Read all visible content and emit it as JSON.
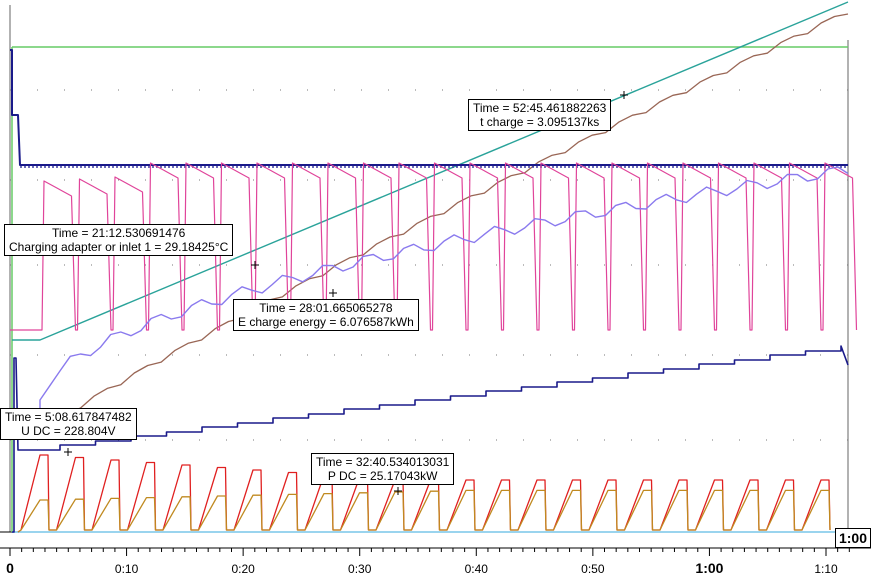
{
  "chart_data": {
    "type": "line",
    "x_unit": "mm:ss",
    "xlim": [
      0,
      72
    ],
    "x_ticks": [
      {
        "v": 0,
        "label": "0",
        "major": true
      },
      {
        "v": 10,
        "label": "0:10",
        "major": false
      },
      {
        "v": 20,
        "label": "0:20",
        "major": false
      },
      {
        "v": 30,
        "label": "0:30",
        "major": false
      },
      {
        "v": 40,
        "label": "0:40",
        "major": false
      },
      {
        "v": 50,
        "label": "0:50",
        "major": false
      },
      {
        "v": 60,
        "label": "1:00",
        "major": true
      },
      {
        "v": 70,
        "label": "1:10",
        "major": false
      }
    ],
    "end_marker_label": "1:00",
    "colors": {
      "green": "#66cc66",
      "teal": "#2aa39a",
      "brown": "#996655",
      "navy": "#1a1a8a",
      "magenta": "#e0449a",
      "lavender": "#8a7aee",
      "red": "#e02020",
      "orange": "#c08a20",
      "cyan": "#9ad4ee"
    },
    "annotations": [
      {
        "id": "t-charge",
        "time": "52:45.461882263",
        "line1": "Time = 52:45.461882263",
        "line2": "t charge = 3.095137ks"
      },
      {
        "id": "temp",
        "time": "21:12.530691476",
        "line1": "Time = 21:12.530691476",
        "line2": "Charging adapter or inlet 1 = 29.18425°C"
      },
      {
        "id": "energy",
        "time": "28:01.665065278",
        "line1": "Time = 28:01.665065278",
        "line2": "E charge energy = 6.076587kWh"
      },
      {
        "id": "udc",
        "time": "5:08.617847482",
        "line1": "Time = 5:08.617847482",
        "line2": "U DC = 228.804V"
      },
      {
        "id": "pdc",
        "time": "32:40.534013031",
        "line1": "Time = 32:40.534013031",
        "line2": "P DC = 25.17043kW"
      }
    ]
  }
}
